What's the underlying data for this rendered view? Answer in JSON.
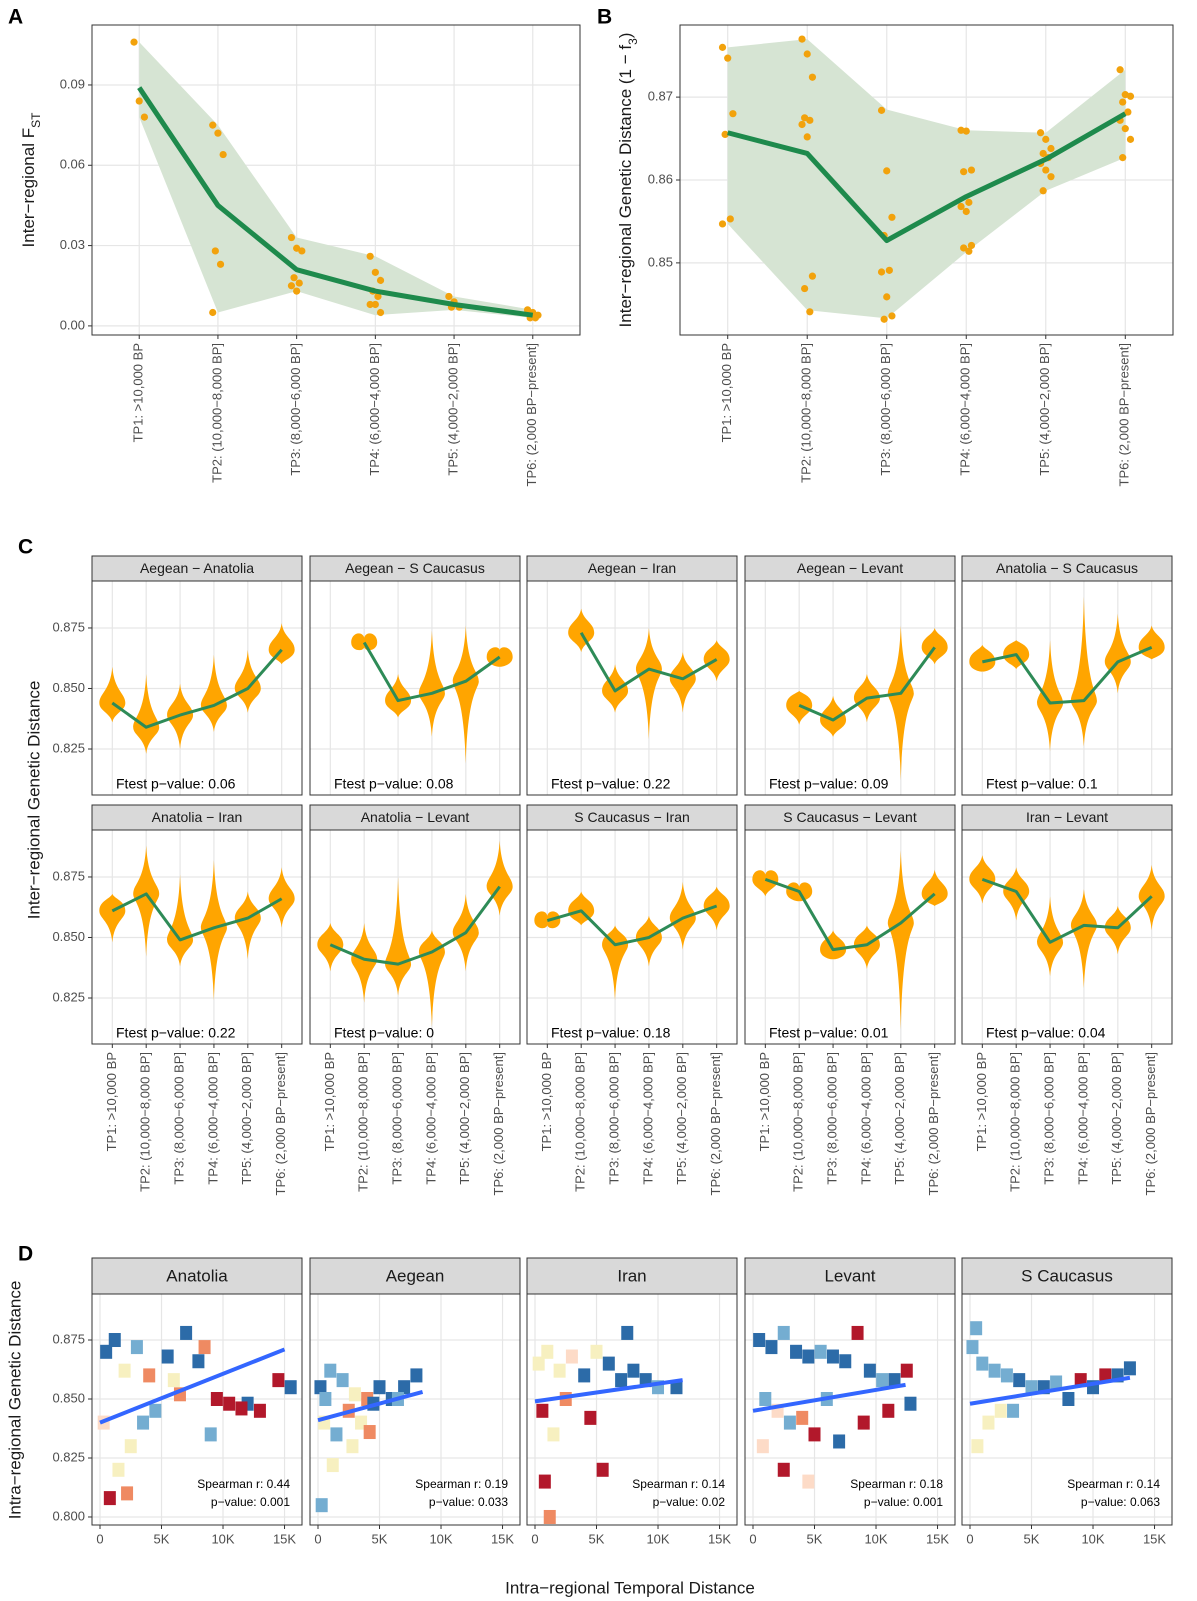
{
  "chart_data": [
    {
      "type": "line",
      "panel_label": "A",
      "y_label": [
        "Inter−regional F",
        "ST"
      ],
      "categories": [
        "TP1: >10,000 BP",
        "TP2: (10,000−8,000 BP]",
        "TP3: (8,000−6,000 BP]",
        "TP4: (6,000−4,000 BP]",
        "TP5: (4,000−2,000 BP]",
        "TP6: (2,000 BP−present]"
      ],
      "values": [
        0.089,
        0.045,
        0.021,
        0.013,
        0.008,
        0.004
      ],
      "upper": [
        0.106,
        0.075,
        0.033,
        0.026,
        0.011,
        0.006
      ],
      "lower": [
        0.078,
        0.005,
        0.013,
        0.004,
        0.006,
        0.003
      ],
      "points": [
        [
          0.106,
          0.084,
          0.078
        ],
        [
          0.075,
          0.072,
          0.064,
          0.028,
          0.023,
          0.005
        ],
        [
          0.033,
          0.029,
          0.028,
          0.018,
          0.016,
          0.015,
          0.013
        ],
        [
          0.026,
          0.02,
          0.017,
          0.013,
          0.011,
          0.008,
          0.008,
          0.005
        ],
        [
          0.011,
          0.009,
          0.007,
          0.007
        ],
        [
          0.006,
          0.005,
          0.004,
          0.003,
          0.003
        ]
      ],
      "color": "#1e8a4c",
      "ribbon_color": "#d6e4d3",
      "point_color": "#f2a20c",
      "ylim": [
        -0.0034,
        0.1124
      ],
      "yticks": [
        {
          "value": 0,
          "label": "0.00"
        },
        0.03,
        0.06,
        0.09
      ],
      "grid": true
    },
    {
      "type": "line",
      "panel_label": "B",
      "y_label": [
        "Inter−regional Genetic Distance (1 − f",
        "3",
        ")"
      ],
      "categories": [
        "TP1: >10,000 BP",
        "TP2: (10,000−8,000 BP]",
        "TP3: (8,000−6,000 BP]",
        "TP4: (6,000−4,000 BP]",
        "TP5: (4,000−2,000 BP]",
        "TP6: (2,000 BP−present]"
      ],
      "values": [
        0.8657,
        0.8632,
        0.8527,
        0.858,
        0.8625,
        0.868
      ],
      "upper": [
        0.876,
        0.877,
        0.8685,
        0.866,
        0.8657,
        0.8733
      ],
      "lower": [
        0.8547,
        0.8443,
        0.8433,
        0.8513,
        0.8587,
        0.8627
      ],
      "points": [
        [
          0.876,
          0.8747,
          0.868,
          0.8655,
          0.8553,
          0.8547
        ],
        [
          0.877,
          0.8752,
          0.8724,
          0.8675,
          0.8672,
          0.8667,
          0.8652,
          0.8484,
          0.8469,
          0.8441
        ],
        [
          0.8684,
          0.8611,
          0.8555,
          0.8533,
          0.8491,
          0.8489,
          0.8459,
          0.8436,
          0.8432
        ],
        [
          0.866,
          0.8659,
          0.8612,
          0.861,
          0.8573,
          0.8568,
          0.8562,
          0.8521,
          0.8518,
          0.8514
        ],
        [
          0.8657,
          0.8649,
          0.8638,
          0.8632,
          0.8627,
          0.862,
          0.8612,
          0.8604,
          0.8587
        ],
        [
          0.8733,
          0.8703,
          0.8701,
          0.8694,
          0.8682,
          0.8672,
          0.8662,
          0.8649,
          0.8627
        ]
      ],
      "color": "#1e8a4c",
      "ribbon_color": "#d6e4d3",
      "point_color": "#f2a20c",
      "ylim": [
        0.8413,
        0.8787
      ],
      "yticks": [
        0.85,
        0.86,
        0.87
      ],
      "grid": true
    },
    {
      "type": "violin",
      "panel_label": "C",
      "y_label": "Inter−regional Genetic Distance",
      "categories": [
        "TP1: >10,000 BP",
        "TP2: (10,000−8,000 BP]",
        "TP3: (8,000−6,000 BP]",
        "TP4: (6,000−4,000 BP]",
        "TP5: (4,000−2,000 BP]",
        "TP6: (2,000 BP−present]"
      ],
      "color": "#2e8b57",
      "violin_color": "#ffa500",
      "ylim": [
        0.806,
        0.8944
      ],
      "yticks": [
        0.825,
        {
          "value": 0.85,
          "label": "0.850"
        },
        0.875
      ],
      "grid": true,
      "facets": [
        {
          "title": "Aegean − Anatolia",
          "annotation": "Ftest p−value: 0.06",
          "values": [
            0.844,
            0.834,
            0.839,
            0.843,
            0.85,
            0.866
          ],
          "min": [
            0.836,
            0.823,
            0.825,
            0.832,
            0.84,
            0.86
          ],
          "max": [
            0.859,
            0.856,
            0.852,
            0.864,
            0.866,
            0.877
          ]
        },
        {
          "title": "Aegean − S Caucasus",
          "annotation": "Ftest p−value: 0.08",
          "values": [
            null,
            0.869,
            0.845,
            0.848,
            0.853,
            0.863
          ],
          "min": [
            null,
            0.867,
            0.838,
            0.83,
            0.819,
            0.859
          ],
          "max": [
            null,
            0.871,
            0.856,
            0.874,
            0.876,
            0.866
          ]
        },
        {
          "title": "Aegean − Iran",
          "annotation": "Ftest p−value: 0.22",
          "values": [
            null,
            0.873,
            0.849,
            0.858,
            0.854,
            0.862
          ],
          "min": [
            null,
            0.865,
            0.84,
            0.829,
            0.84,
            0.853
          ],
          "max": [
            null,
            0.883,
            0.86,
            0.875,
            0.865,
            0.87
          ]
        },
        {
          "title": "Aegean − Levant",
          "annotation": "Ftest p−value: 0.09",
          "values": [
            null,
            0.843,
            0.837,
            0.846,
            0.848,
            0.867
          ],
          "min": [
            null,
            0.835,
            0.83,
            0.836,
            0.812,
            0.86
          ],
          "max": [
            null,
            0.849,
            0.847,
            0.856,
            0.876,
            0.875
          ]
        },
        {
          "title": "Anatolia − S Caucasus",
          "annotation": "Ftest p−value: 0.1",
          "values": [
            0.861,
            0.864,
            0.844,
            0.845,
            0.861,
            0.867
          ],
          "min": [
            0.857,
            0.858,
            0.824,
            0.826,
            0.848,
            0.862
          ],
          "max": [
            0.868,
            0.87,
            0.87,
            0.888,
            0.881,
            0.876
          ]
        },
        {
          "title": "Anatolia − Iran",
          "annotation": "Ftest p−value: 0.22",
          "values": [
            0.861,
            0.868,
            0.849,
            0.854,
            0.858,
            0.866
          ],
          "min": [
            0.848,
            0.842,
            0.838,
            0.824,
            0.841,
            0.854
          ],
          "max": [
            0.868,
            0.888,
            0.876,
            0.882,
            0.869,
            0.879
          ]
        },
        {
          "title": "Anatolia − Levant",
          "annotation": "Ftest p−value: 0",
          "values": [
            0.847,
            0.841,
            0.839,
            0.844,
            0.852,
            0.871
          ],
          "min": [
            0.836,
            0.823,
            0.826,
            0.813,
            0.836,
            0.859
          ],
          "max": [
            0.856,
            0.856,
            0.875,
            0.853,
            0.868,
            0.89
          ]
        },
        {
          "title": "S Caucasus − Iran",
          "annotation": "Ftest p−value: 0.18",
          "values": [
            0.857,
            0.861,
            0.847,
            0.85,
            0.858,
            0.863
          ],
          "min": [
            0.855,
            0.855,
            0.824,
            0.838,
            0.845,
            0.853
          ],
          "max": [
            0.859,
            0.869,
            0.855,
            0.859,
            0.873,
            0.871
          ]
        },
        {
          "title": "S Caucasus − Levant",
          "annotation": "Ftest p−value: 0.01",
          "values": [
            0.874,
            0.869,
            0.845,
            0.847,
            0.856,
            0.868
          ],
          "min": [
            0.867,
            0.865,
            0.841,
            0.837,
            0.812,
            0.863
          ],
          "max": [
            0.876,
            0.871,
            0.853,
            0.855,
            0.886,
            0.878
          ]
        },
        {
          "title": "Iran − Levant",
          "annotation": "Ftest p−value: 0.04",
          "values": [
            0.874,
            0.869,
            0.848,
            0.855,
            0.854,
            0.867
          ],
          "min": [
            0.864,
            0.857,
            0.834,
            0.829,
            0.843,
            0.853
          ],
          "max": [
            0.884,
            0.879,
            0.867,
            0.87,
            0.863,
            0.88
          ]
        }
      ]
    },
    {
      "type": "scatter",
      "panel_label": "D",
      "x_label": "Intra−regional Temporal Distance",
      "y_label": "Intra−regional Genetic Distance",
      "fit_color": "#3366ff",
      "xlim": [
        -650,
        16420
      ],
      "xticks": [
        0,
        {
          "value": 5000,
          "label": "5K"
        },
        {
          "value": 10000,
          "label": "10K"
        },
        {
          "value": 15000,
          "label": "15K"
        }
      ],
      "ylim": [
        0.7966,
        0.8945
      ],
      "yticks": [
        {
          "value": 0.8,
          "label": "0.800"
        },
        0.825,
        {
          "value": 0.85,
          "label": "0.850"
        },
        0.875
      ],
      "grid": true,
      "facets": [
        {
          "title": "Anatolia",
          "annotations": [
            "Spearman r: 0.44",
            "p−value: 0.001"
          ],
          "fit_x": [
            0,
            15000
          ],
          "fit_y": [
            0.84,
            0.871
          ],
          "x": [
            500,
            1200,
            2000,
            3000,
            4000,
            5500,
            7000,
            8500,
            9500,
            12000,
            14500,
            15500,
            800,
            2500,
            4500,
            6500,
            8000,
            10500,
            1500,
            3500,
            6000,
            9000,
            11500,
            13000,
            300,
            2200
          ],
          "values": [
            0.87,
            0.875,
            0.862,
            0.872,
            0.86,
            0.868,
            0.878,
            0.872,
            0.85,
            0.848,
            0.858,
            0.855,
            0.808,
            0.83,
            0.845,
            0.852,
            0.866,
            0.848,
            0.82,
            0.84,
            0.858,
            0.835,
            0.846,
            0.845,
            0.84,
            0.81
          ],
          "colors": [
            "#2c6ba8",
            "#2c6ba8",
            "#f7f0c0",
            "#74add1",
            "#ef8a62",
            "#2c6ba8",
            "#2c6ba8",
            "#ef8a62",
            "#b2182b",
            "#2c6ba8",
            "#b2182b",
            "#2c6ba8",
            "#b2182b",
            "#f7f0c0",
            "#74add1",
            "#ef8a62",
            "#2c6ba8",
            "#b2182b",
            "#f7f0c0",
            "#74add1",
            "#f7f0c0",
            "#74add1",
            "#b2182b",
            "#b2182b",
            "#fddbc7",
            "#ef8a62"
          ]
        },
        {
          "title": "Aegean",
          "annotations": [
            "Spearman r: 0.19",
            "p−value: 0.033"
          ],
          "fit_x": [
            0,
            8500
          ],
          "fit_y": [
            0.841,
            0.853
          ],
          "x": [
            200,
            1000,
            2000,
            3000,
            4000,
            5000,
            6000,
            7000,
            8000,
            500,
            1500,
            2500,
            3500,
            4500,
            6500,
            300,
            1200,
            2800,
            600,
            4200
          ],
          "values": [
            0.855,
            0.862,
            0.858,
            0.852,
            0.85,
            0.855,
            0.85,
            0.855,
            0.86,
            0.84,
            0.835,
            0.845,
            0.84,
            0.848,
            0.85,
            0.805,
            0.822,
            0.83,
            0.85,
            0.836
          ],
          "colors": [
            "#2c6ba8",
            "#74add1",
            "#74add1",
            "#f7f0c0",
            "#ef8a62",
            "#2c6ba8",
            "#2c6ba8",
            "#2c6ba8",
            "#2c6ba8",
            "#f7f0c0",
            "#74add1",
            "#ef8a62",
            "#f7f0c0",
            "#2c6ba8",
            "#74add1",
            "#74add1",
            "#f7f0c0",
            "#f7f0c0",
            "#74add1",
            "#ef8a62"
          ]
        },
        {
          "title": "Iran",
          "annotations": [
            "Spearman r: 0.14",
            "p−value: 0.02"
          ],
          "fit_x": [
            0,
            12000
          ],
          "fit_y": [
            0.849,
            0.858
          ],
          "x": [
            300,
            1000,
            2000,
            3000,
            4000,
            5000,
            6000,
            7000,
            8000,
            9000,
            10000,
            11500,
            600,
            1500,
            2500,
            4500,
            5500,
            800,
            1200,
            7500
          ],
          "values": [
            0.865,
            0.87,
            0.862,
            0.868,
            0.86,
            0.87,
            0.865,
            0.858,
            0.862,
            0.858,
            0.855,
            0.855,
            0.845,
            0.835,
            0.85,
            0.842,
            0.82,
            0.815,
            0.8,
            0.878
          ],
          "colors": [
            "#f7f0c0",
            "#f7f0c0",
            "#f7f0c0",
            "#fddbc7",
            "#2c6ba8",
            "#f7f0c0",
            "#2c6ba8",
            "#2c6ba8",
            "#2c6ba8",
            "#2c6ba8",
            "#74add1",
            "#2c6ba8",
            "#b2182b",
            "#f7f0c0",
            "#ef8a62",
            "#b2182b",
            "#b2182b",
            "#b2182b",
            "#ef8a62",
            "#2c6ba8"
          ]
        },
        {
          "title": "Levant",
          "annotations": [
            "Spearman r: 0.18",
            "p−value: 0.001"
          ],
          "fit_x": [
            0,
            12400
          ],
          "fit_y": [
            0.845,
            0.856
          ],
          "x": [
            500,
            1500,
            2500,
            3500,
            4500,
            5500,
            6500,
            7500,
            8500,
            9500,
            10500,
            11500,
            12500,
            1000,
            2000,
            3000,
            4000,
            5000,
            6000,
            800,
            2500,
            4500,
            7000,
            9000,
            11000,
            12800
          ],
          "values": [
            0.875,
            0.872,
            0.878,
            0.87,
            0.868,
            0.87,
            0.868,
            0.866,
            0.878,
            0.862,
            0.858,
            0.858,
            0.862,
            0.85,
            0.845,
            0.84,
            0.842,
            0.835,
            0.85,
            0.83,
            0.82,
            0.815,
            0.832,
            0.84,
            0.845,
            0.848
          ],
          "colors": [
            "#2c6ba8",
            "#2c6ba8",
            "#74add1",
            "#2c6ba8",
            "#2c6ba8",
            "#74add1",
            "#2c6ba8",
            "#2c6ba8",
            "#b2182b",
            "#2c6ba8",
            "#74add1",
            "#2c6ba8",
            "#b2182b",
            "#74add1",
            "#fddbc7",
            "#74add1",
            "#ef8a62",
            "#b2182b",
            "#74add1",
            "#fddbc7",
            "#b2182b",
            "#fddbc7",
            "#2c6ba8",
            "#b2182b",
            "#b2182b",
            "#2c6ba8"
          ]
        },
        {
          "title": "S Caucasus",
          "annotations": [
            "Spearman r: 0.14",
            "p−value: 0.063"
          ],
          "fit_x": [
            0,
            13000
          ],
          "fit_y": [
            0.848,
            0.859
          ],
          "x": [
            200,
            1000,
            2000,
            3000,
            4000,
            5000,
            6000,
            7000,
            8000,
            9000,
            10000,
            11000,
            12000,
            13000,
            500,
            1500,
            2500,
            600,
            3500
          ],
          "values": [
            0.872,
            0.865,
            0.862,
            0.86,
            0.858,
            0.855,
            0.855,
            0.857,
            0.85,
            0.858,
            0.855,
            0.86,
            0.86,
            0.863,
            0.88,
            0.84,
            0.845,
            0.83,
            0.845
          ],
          "colors": [
            "#74add1",
            "#74add1",
            "#74add1",
            "#74add1",
            "#2c6ba8",
            "#74add1",
            "#2c6ba8",
            "#74add1",
            "#2c6ba8",
            "#b2182b",
            "#2c6ba8",
            "#b2182b",
            "#2c6ba8",
            "#2c6ba8",
            "#74add1",
            "#f7f0c0",
            "#f7f0c0",
            "#f7f0c0",
            "#74add1"
          ]
        }
      ]
    }
  ]
}
